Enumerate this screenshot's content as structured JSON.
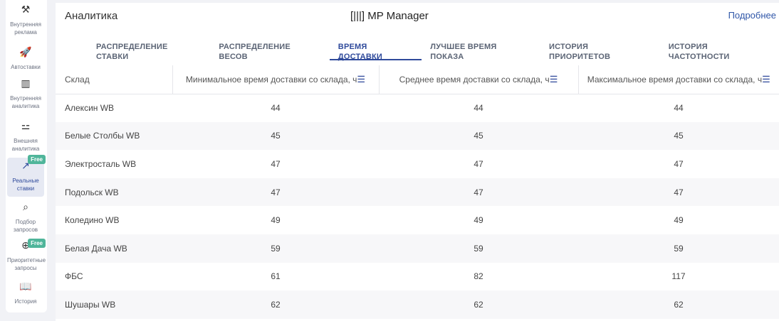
{
  "sidebar": {
    "items": [
      {
        "label": "Внутренняя реклама",
        "icon": "gavel-icon"
      },
      {
        "label": "Автоставки",
        "icon": "rocket-icon"
      },
      {
        "label": "Внутренняя аналитика",
        "icon": "bar-chart-icon"
      },
      {
        "label": "Внешняя аналитика",
        "icon": "users-compare-icon"
      },
      {
        "label": "Реальные ставки",
        "icon": "trending-up-icon",
        "badge": "Free",
        "active": true
      },
      {
        "label": "Подбор запросов",
        "icon": "search-box-icon"
      },
      {
        "label": "Приоритетные запросы",
        "icon": "zoom-plus-icon",
        "badge": "Free"
      },
      {
        "label": "История",
        "icon": "book-icon"
      }
    ]
  },
  "header": {
    "title": "Аналитика",
    "logo": "MP Manager",
    "more_link": "Подробнее"
  },
  "tabs": [
    {
      "label": "РАСПРЕДЕЛЕНИЕ СТАВКИ"
    },
    {
      "label": "РАСПРЕДЕЛЕНИЕ ВЕСОВ"
    },
    {
      "label": "ВРЕМЯ ДОСТАВКИ",
      "active": true
    },
    {
      "label": "ЛУЧШЕЕ ВРЕМЯ ПОКАЗА"
    },
    {
      "label": "ИСТОРИЯ ПРИОРИТЕТОВ"
    },
    {
      "label": "ИСТОРИЯ ЧАСТОТНОСТИ"
    }
  ],
  "table": {
    "columns": [
      "Склад",
      "Минимальное время доставки со склада, ч",
      "Среднее время доставки со склада, ч",
      "Максимальное время доставки со склада, ч"
    ],
    "rows": [
      [
        "Алексин WB",
        "44",
        "44",
        "44"
      ],
      [
        "Белые Столбы WB",
        "45",
        "45",
        "45"
      ],
      [
        "Электросталь WB",
        "47",
        "47",
        "47"
      ],
      [
        "Подольск WB",
        "47",
        "47",
        "47"
      ],
      [
        "Коледино WB",
        "49",
        "49",
        "49"
      ],
      [
        "Белая Дача WB",
        "59",
        "59",
        "59"
      ],
      [
        "ФБС",
        "61",
        "82",
        "117"
      ],
      [
        "Шушары WB",
        "62",
        "62",
        "62"
      ]
    ]
  },
  "colors": {
    "accent": "#2f4a9b",
    "badge": "#4fb59a"
  }
}
